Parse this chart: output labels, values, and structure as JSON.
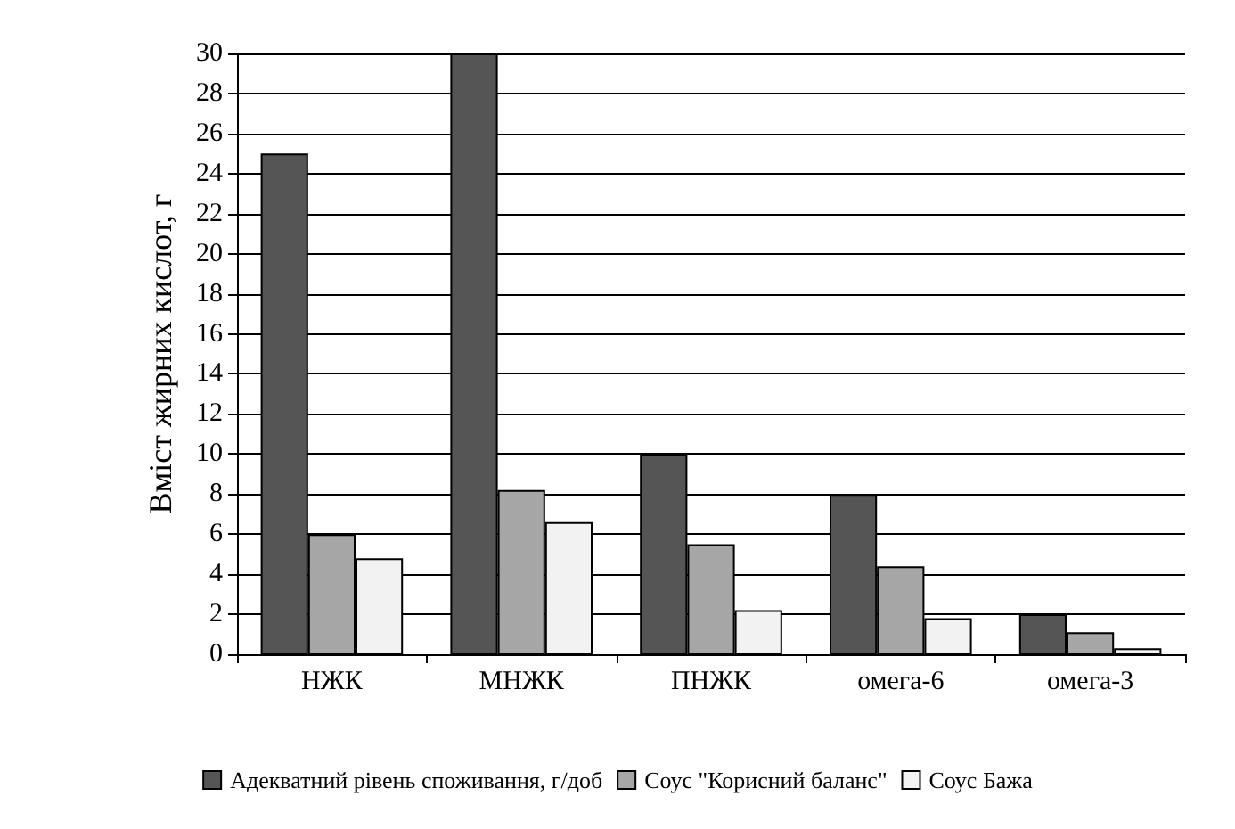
{
  "chart_data": {
    "type": "bar",
    "ylabel": "Вміст жирних кислот, г",
    "categories": [
      "НЖК",
      "МНЖК",
      "ПНЖК",
      "омега-6",
      "омега-3"
    ],
    "series": [
      {
        "name": "Адекватний рівень споживання, г/доб",
        "color": "#555555",
        "values": [
          25,
          30,
          10,
          8,
          2
        ]
      },
      {
        "name": "Соус \"Корисний баланс\"",
        "color": "#a6a6a6",
        "values": [
          6,
          8.2,
          5.5,
          4.4,
          1.1
        ]
      },
      {
        "name": "Соус Бажа",
        "color": "#f2f2f2",
        "values": [
          4.8,
          6.6,
          2.2,
          1.8,
          0.3
        ]
      }
    ],
    "ylim": [
      0,
      30
    ],
    "yticks": [
      0,
      2,
      4,
      6,
      8,
      10,
      12,
      14,
      16,
      18,
      20,
      22,
      24,
      26,
      28,
      30
    ],
    "grid": "y",
    "legend": "bottom"
  }
}
